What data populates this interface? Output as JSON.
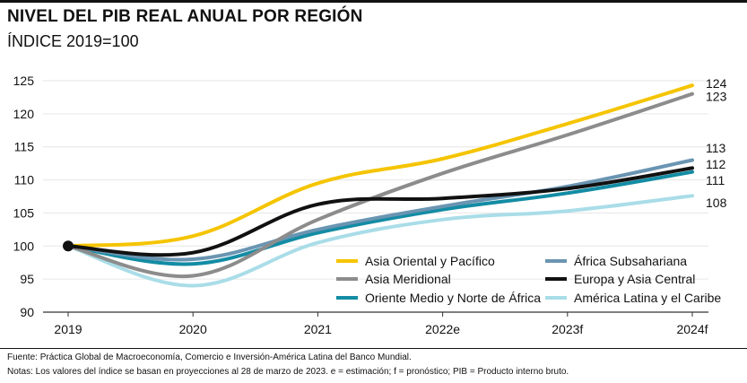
{
  "header": {
    "title": "NIVEL DEL PIB REAL ANUAL POR REGIÓN",
    "subtitle": "ÍNDICE 2019=100"
  },
  "footer": {
    "source": "Fuente: Práctica Global de Macroeconomía, Comercio e Inversión-América Latina del Banco Mundial.",
    "notes": "Notas: Los valores del índice se basan en proyecciones al 28 de marzo de 2023. e = estimación; f = pronóstico; PIB = Producto interno bruto."
  },
  "chart_data": {
    "type": "line",
    "title": "NIVEL DEL PIB REAL ANUAL POR REGIÓN",
    "subtitle": "ÍNDICE 2019=100",
    "xlabel": "",
    "ylabel": "",
    "categories": [
      "2019",
      "2020",
      "2021",
      "2022e",
      "2023f",
      "2024f"
    ],
    "ylim": [
      90,
      125
    ],
    "yticks": [
      90,
      95,
      100,
      105,
      110,
      115,
      120,
      125
    ],
    "grid": true,
    "legend_position": "bottom-right",
    "series": [
      {
        "name": "Asia Oriental y Pacífico",
        "color": "#F5C400",
        "values": [
          100,
          101.5,
          109.5,
          113.2,
          118.5,
          124.3
        ],
        "end_label": "124"
      },
      {
        "name": "Asia Meridional",
        "color": "#8C8C8C",
        "values": [
          100,
          95.5,
          104,
          111,
          116.8,
          123
        ],
        "end_label": "123"
      },
      {
        "name": "Oriente Medio  y Norte de África",
        "color": "#138CA4",
        "values": [
          100,
          97.3,
          102,
          105.5,
          108,
          111.2
        ],
        "end_label": "111"
      },
      {
        "name": "África Subsahariana",
        "color": "#6A95B2",
        "values": [
          100,
          98,
          102.5,
          106,
          109,
          113
        ],
        "end_label": "113"
      },
      {
        "name": "Europa y Asia Central",
        "color": "#111111",
        "values": [
          100,
          99,
          106.3,
          107.2,
          108.7,
          111.8
        ],
        "end_label": "112"
      },
      {
        "name": "América Latina y el Caribe",
        "color": "#A9DDE8",
        "values": [
          100,
          94,
          100.5,
          104,
          105.3,
          107.6
        ],
        "end_label": "108"
      }
    ]
  }
}
